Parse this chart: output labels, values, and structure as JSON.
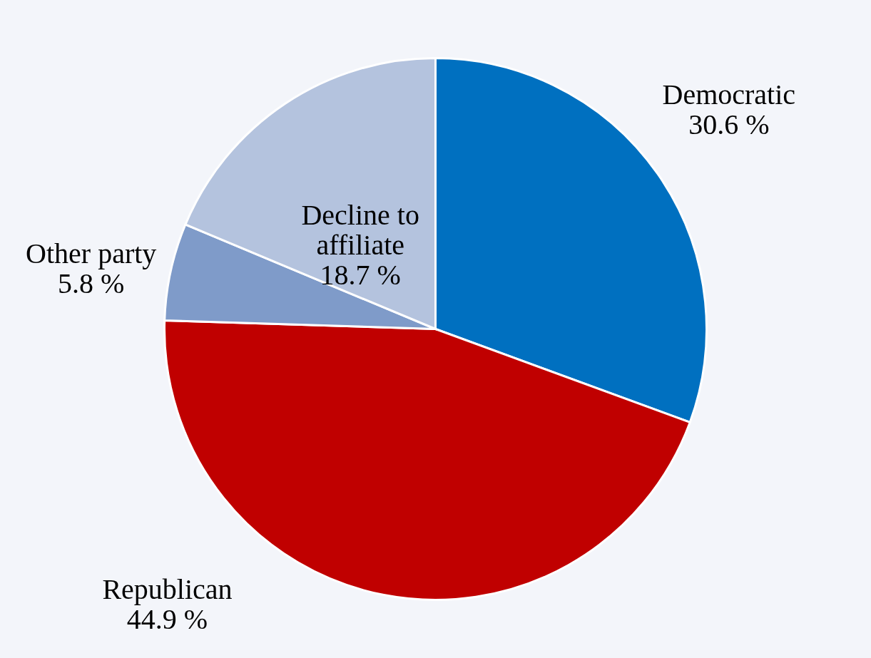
{
  "chart_data": {
    "type": "pie",
    "categories": [
      "Democratic",
      "Republican",
      "Other party",
      "Decline to affiliate"
    ],
    "values": [
      30.6,
      44.9,
      5.8,
      18.7
    ],
    "colors": [
      "#0070c0",
      "#c00000",
      "#7f9bc9",
      "#b4c3de"
    ],
    "value_labels": [
      "30.6 %",
      "44.9 %",
      "5.8 %",
      "18.7 %"
    ]
  }
}
